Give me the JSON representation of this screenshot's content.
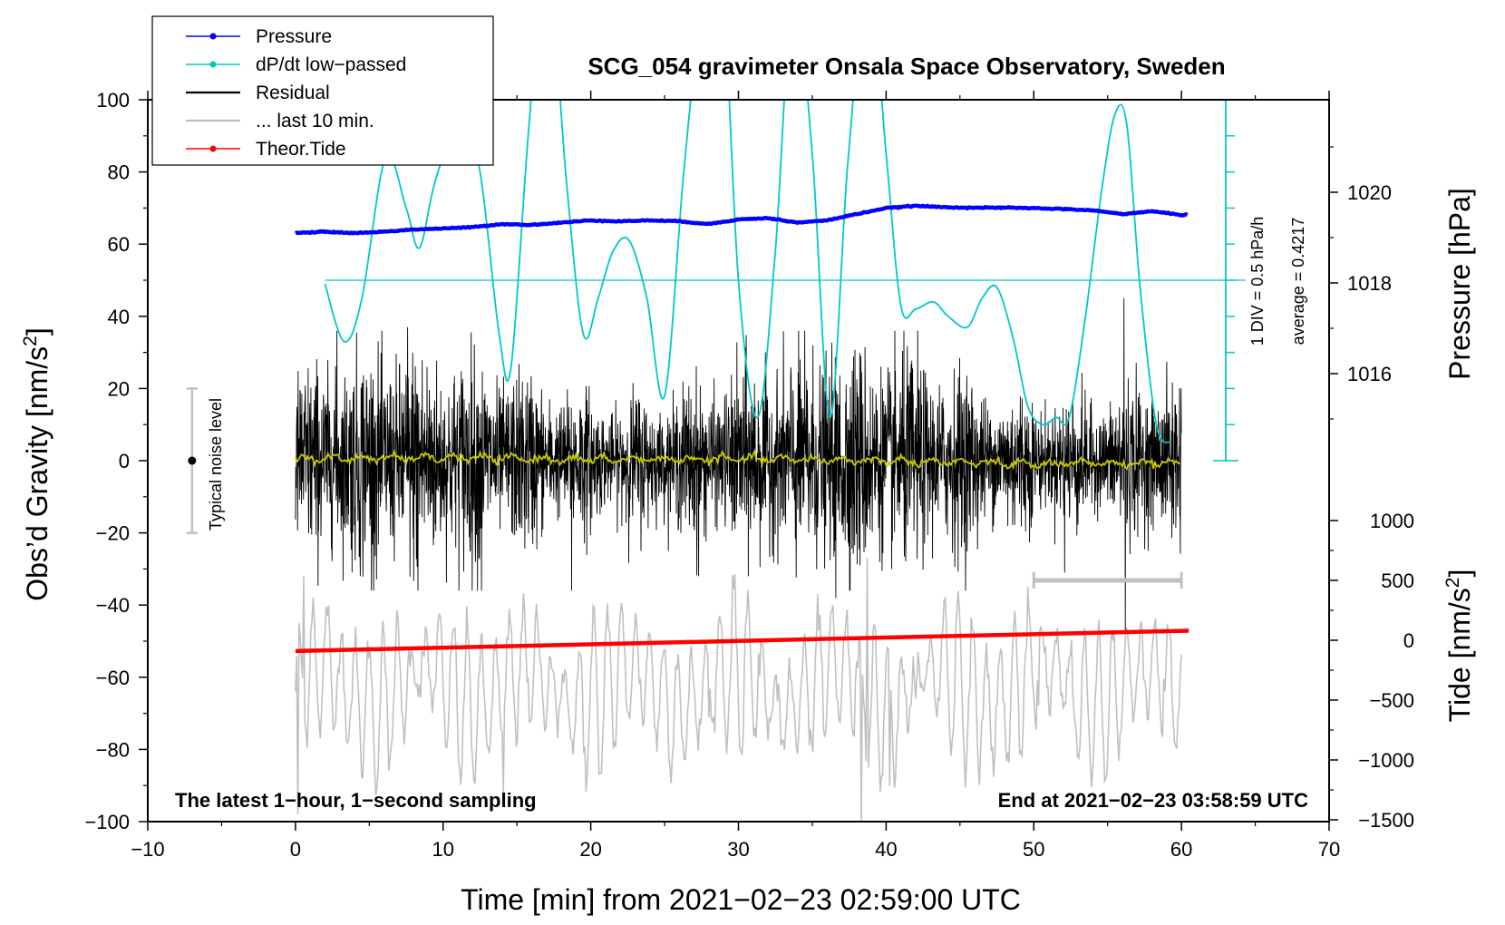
{
  "chart_data": {
    "type": "line",
    "title": "SCG_054 gravimeter Onsala Space Observatory, Sweden",
    "xlabel": "Time [min] from 2021−02−23 02:59:00 UTC",
    "ylabel": "Obs’d Gravity [nm/s²]",
    "ylabel_parts": {
      "base": "Obs’d Gravity [nm/s",
      "sup": "2",
      "close": "]"
    },
    "xlim": [
      -10,
      70
    ],
    "ylim": [
      -100,
      100
    ],
    "x_ticks": [
      -10,
      0,
      10,
      20,
      30,
      40,
      50,
      60,
      70
    ],
    "x_tick_labels": [
      "−10",
      "0",
      "10",
      "20",
      "30",
      "40",
      "50",
      "60",
      "70"
    ],
    "y_ticks": [
      -100,
      -80,
      -60,
      -40,
      -20,
      0,
      20,
      40,
      60,
      80,
      100
    ],
    "y_tick_labels": [
      "−100",
      "−80",
      "−60",
      "−40",
      "−20",
      "0",
      "20",
      "40",
      "60",
      "80",
      "100"
    ],
    "right_axis_pressure": {
      "label": "Pressure [hPa]",
      "ticks": [
        1016,
        1018,
        1020
      ],
      "tick_labels": [
        "1016",
        "1018",
        "1020"
      ],
      "range": [
        1014,
        1022
      ]
    },
    "right_axis_tide": {
      "label_parts": {
        "base": "Tide [nm/s",
        "sup": "2",
        "close": "]"
      },
      "ticks": [
        -1500,
        -1000,
        -500,
        0,
        500,
        1000
      ],
      "tick_labels": [
        "−1500",
        "−1000",
        "−500",
        "0",
        "500",
        "1000"
      ],
      "range": [
        -1500,
        1500
      ]
    },
    "legend": [
      {
        "name": "Pressure",
        "color": "#0000ff",
        "marker": true
      },
      {
        "name": "dP/dt low−passed",
        "color": "#00c8c8",
        "marker": true
      },
      {
        "name": "Residual",
        "color": "#000000",
        "marker": false
      },
      {
        "name": "... last 10 min.",
        "color": "#c0c0c0",
        "marker": false
      },
      {
        "name": "Theor.Tide",
        "color": "#ff0000",
        "marker": true
      }
    ],
    "series": [
      {
        "name": "Pressure",
        "axis": "pressure_hPa",
        "color": "#0000ff",
        "x": [
          0,
          2,
          4,
          6,
          8,
          10,
          12,
          14,
          16,
          18,
          20,
          22,
          24,
          26,
          28,
          30,
          32,
          34,
          36,
          38,
          40,
          42,
          44,
          46,
          48,
          50,
          52,
          54,
          56,
          58,
          60
        ],
        "values": [
          1019.1,
          1019.13,
          1019.1,
          1019.13,
          1019.18,
          1019.2,
          1019.23,
          1019.3,
          1019.28,
          1019.33,
          1019.38,
          1019.36,
          1019.38,
          1019.36,
          1019.3,
          1019.4,
          1019.43,
          1019.33,
          1019.38,
          1019.52,
          1019.65,
          1019.7,
          1019.67,
          1019.66,
          1019.66,
          1019.65,
          1019.63,
          1019.6,
          1019.52,
          1019.58,
          1019.5
        ]
      },
      {
        "name": "dP/dt low−passed",
        "axis": "gravity_panel_scaled",
        "color": "#00c8c8",
        "x": [
          2,
          3.3,
          4.5,
          6.1,
          7.5,
          8.4,
          9.5,
          11.2,
          12.5,
          13.8,
          14.6,
          15.8,
          17,
          18.4,
          19.5,
          20.5,
          21.5,
          22.6,
          23.8,
          25,
          26.3,
          27.5,
          28.8,
          30,
          31.3,
          32.5,
          33.7,
          35,
          36.2,
          37.4,
          38.8,
          40,
          41,
          42,
          43.2,
          44.2,
          45.5,
          46.5,
          47.5,
          48.6,
          49.6,
          50.6,
          51.5,
          52.4,
          53.5,
          54.6,
          55.5,
          56.3,
          57.2,
          58.3,
          59.3
        ],
        "values": [
          49,
          33,
          45,
          84,
          70,
          59,
          78,
          95,
          80,
          35,
          26,
          92,
          140,
          75,
          35,
          45,
          58,
          61,
          45,
          18,
          80,
          125,
          140,
          50,
          12,
          58,
          130,
          85,
          12,
          82,
          135,
          85,
          43,
          42,
          44,
          40,
          37,
          45,
          48,
          34,
          15,
          10,
          12,
          12,
          40,
          75,
          96,
          93,
          48,
          10,
          5
        ]
      },
      {
        "name": "Residual",
        "axis": "gravity",
        "color": "#000000",
        "x_range": [
          0,
          60
        ],
        "envelope_rms": 13,
        "spikes": [
          {
            "x": 2.8,
            "value": 36
          },
          {
            "x": 7.6,
            "value": 37
          },
          {
            "x": 8.3,
            "value": -36
          },
          {
            "x": 12.6,
            "value": -36
          },
          {
            "x": 18.7,
            "value": -36
          },
          {
            "x": 27.3,
            "value": -32
          },
          {
            "x": 36.6,
            "value": -38
          },
          {
            "x": 52.1,
            "value": -31
          },
          {
            "x": 56.1,
            "value": 45
          },
          {
            "x": 56.2,
            "value": -47
          }
        ]
      },
      {
        "name": "Residual (low−passed)",
        "axis": "gravity",
        "color": "#c8c800",
        "x": [
          0,
          10,
          20,
          30,
          40,
          50,
          60
        ],
        "values": [
          0.5,
          0.8,
          0.3,
          0.5,
          0,
          -1,
          -0.5
        ]
      },
      {
        "name": "... last 10 min.",
        "axis": "gravity",
        "color": "#c0c0c0",
        "x_range": [
          0,
          60
        ],
        "baseline": -63,
        "amplitude": 17,
        "period_min": 0.95,
        "extremes": [
          {
            "x": 0.15,
            "value": -98
          },
          {
            "x": 0.6,
            "value": -32
          },
          {
            "x": 14.1,
            "value": -92
          },
          {
            "x": 38.3,
            "value": -100
          },
          {
            "x": 38.7,
            "value": -27
          },
          {
            "x": 40.2,
            "value": -90
          }
        ]
      },
      {
        "name": "Theor.Tide",
        "axis": "tide_nm_s2",
        "color": "#ff0000",
        "x": [
          0,
          60
        ],
        "values": [
          -90,
          80
        ]
      }
    ],
    "dpdt_reference": {
      "average_label": "average = 0.4217",
      "div_label": "1 DIV = 0.5 hPa/h",
      "baseline_y": 50,
      "scale_x": 63,
      "scale_range": [
        0,
        100
      ],
      "scale_divisions": 10
    },
    "noise_bar": {
      "x": -7,
      "center": 0,
      "low": -20,
      "high": 20,
      "label": "Typical noise level"
    },
    "last10_marker": {
      "x_start": 50,
      "x_end": 60,
      "tide": 500
    },
    "annotations": {
      "bottom_left": "The latest 1−hour, 1−second sampling",
      "bottom_right": "End at 2021−02−23 03:58:59 UTC"
    }
  }
}
